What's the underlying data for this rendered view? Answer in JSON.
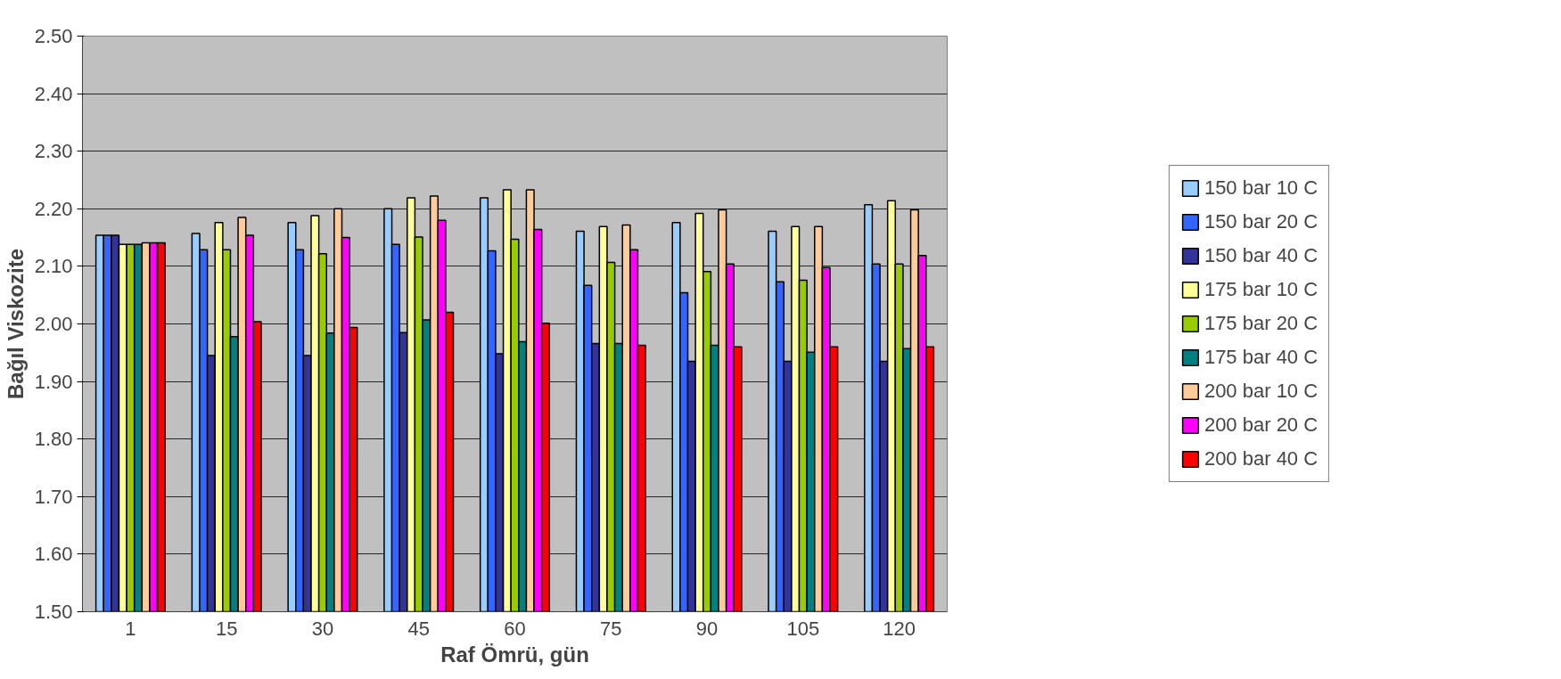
{
  "chart_data": {
    "type": "bar",
    "xlabel": "Raf Ömrü, gün",
    "ylabel": "Bağıl Viskozite",
    "categories": [
      "1",
      "15",
      "30",
      "45",
      "60",
      "75",
      "90",
      "105",
      "120"
    ],
    "series": [
      {
        "name": "150 bar 10 C",
        "color": "#99ccff",
        "values": [
          2.154,
          2.157,
          2.176,
          2.2,
          2.219,
          2.161,
          2.176,
          2.161,
          2.207
        ]
      },
      {
        "name": "150 bar 20 C",
        "color": "#3366ff",
        "values": [
          2.154,
          2.129,
          2.129,
          2.138,
          2.127,
          2.067,
          2.054,
          2.073,
          2.104
        ]
      },
      {
        "name": "150 bar 40 C",
        "color": "#333399",
        "values": [
          2.154,
          1.945,
          1.945,
          1.985,
          1.948,
          1.966,
          1.935,
          1.935,
          1.935
        ]
      },
      {
        "name": "175 bar 10 C",
        "color": "#ffff99",
        "values": [
          2.138,
          2.176,
          2.188,
          2.219,
          2.233,
          2.169,
          2.192,
          2.169,
          2.214
        ]
      },
      {
        "name": "175 bar 20 C",
        "color": "#99cc00",
        "values": [
          2.138,
          2.129,
          2.122,
          2.151,
          2.147,
          2.107,
          2.091,
          2.076,
          2.104
        ]
      },
      {
        "name": "175 bar 40 C",
        "color": "#008080",
        "values": [
          2.138,
          1.978,
          1.984,
          2.007,
          1.969,
          1.966,
          1.963,
          1.951,
          1.957
        ]
      },
      {
        "name": "200 bar 10 C",
        "color": "#ffcc99",
        "values": [
          2.141,
          2.185,
          2.2,
          2.222,
          2.233,
          2.172,
          2.198,
          2.169,
          2.198
        ]
      },
      {
        "name": "200 bar 20 C",
        "color": "#ff00ff",
        "values": [
          2.141,
          2.154,
          2.15,
          2.18,
          2.164,
          2.129,
          2.104,
          2.098,
          2.119
        ]
      },
      {
        "name": "200 bar 40 C",
        "color": "#ff0000",
        "values": [
          2.141,
          2.004,
          1.994,
          2.02,
          2.001,
          1.963,
          1.96,
          1.96,
          1.96
        ]
      }
    ],
    "ylim": [
      1.5,
      2.5
    ],
    "yticks": [
      {
        "value": 1.5,
        "label": "1.50"
      },
      {
        "value": 1.6,
        "label": "1.60"
      },
      {
        "value": 1.7,
        "label": "1.70"
      },
      {
        "value": 1.8,
        "label": "1.80"
      },
      {
        "value": 1.9,
        "label": "1.90"
      },
      {
        "value": 2.0,
        "label": "2.00"
      },
      {
        "value": 2.1,
        "label": "2.10"
      },
      {
        "value": 2.2,
        "label": "2.20"
      },
      {
        "value": 2.3,
        "label": "2.30"
      },
      {
        "value": 2.4,
        "label": "2.40"
      },
      {
        "value": 2.5,
        "label": "2.50"
      }
    ],
    "grid": "y",
    "legend": "right"
  }
}
